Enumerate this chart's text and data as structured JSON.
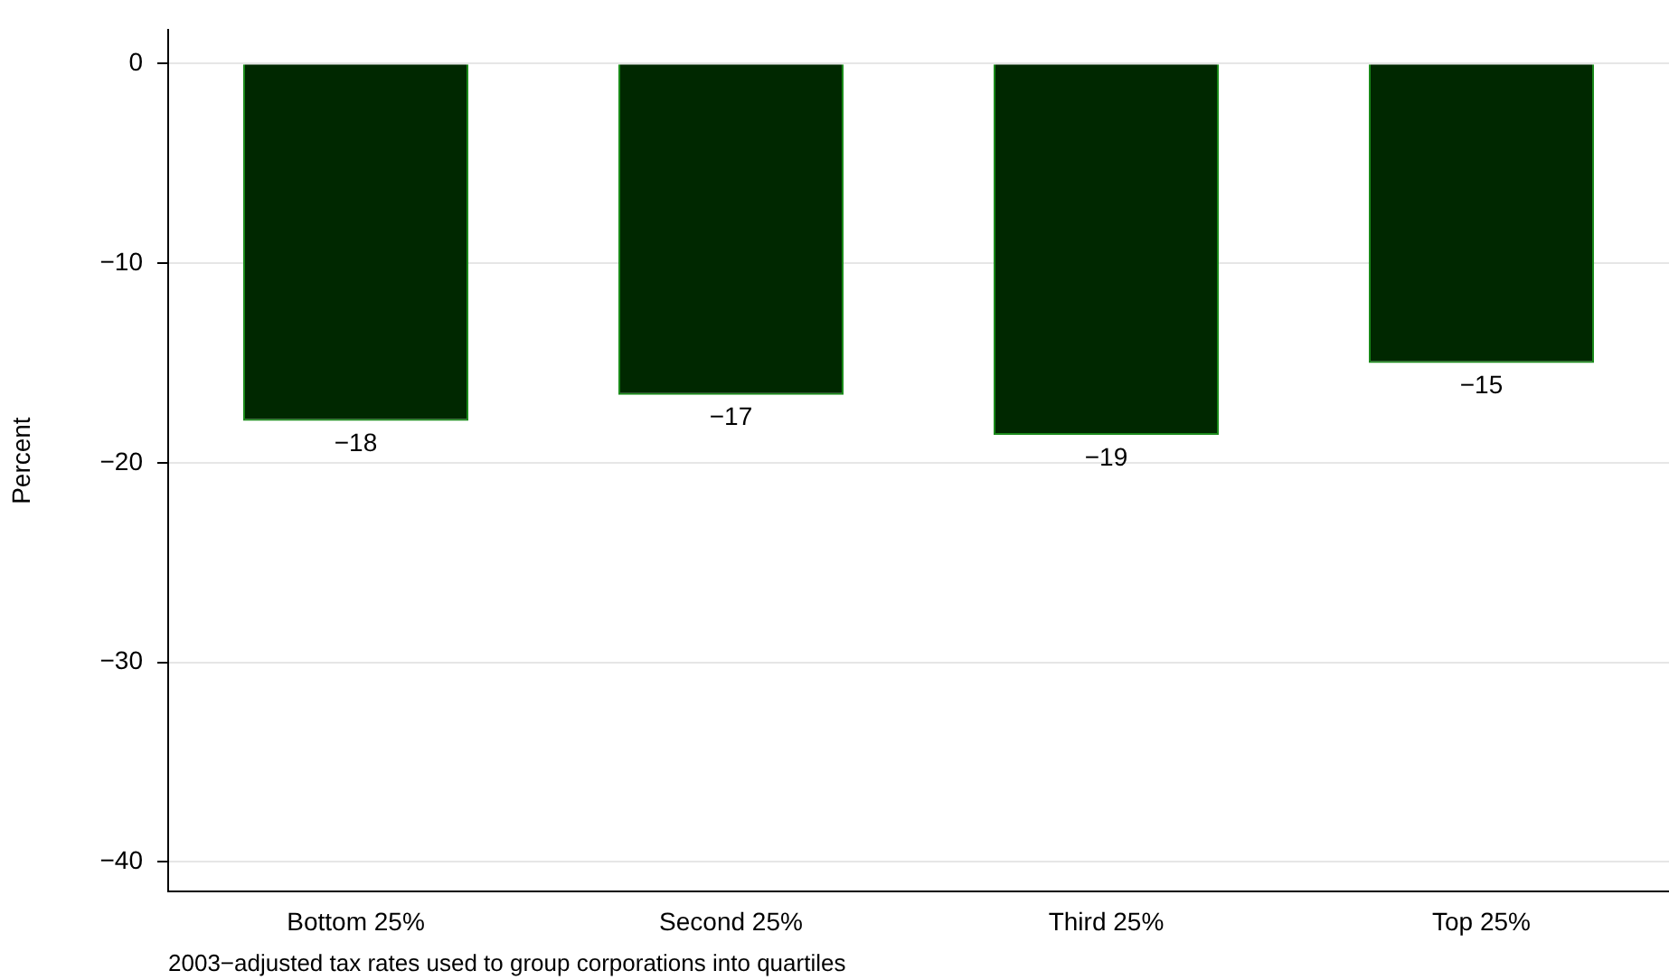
{
  "chart_data": {
    "type": "bar",
    "ylabel": "Percent",
    "categories": [
      "Bottom 25%",
      "Second 25%",
      "Third 25%",
      "Top 25%"
    ],
    "values": [
      -17.9,
      -16.6,
      -18.6,
      -15.0
    ],
    "value_labels": [
      "−18",
      "−17",
      "−19",
      "−15"
    ],
    "color": "#002800",
    "ylim": [
      -41.5,
      1.7
    ],
    "yticks": [
      {
        "value": 0,
        "label": "0"
      },
      {
        "value": -10,
        "label": "−10"
      },
      {
        "value": -20,
        "label": "−20"
      },
      {
        "value": -30,
        "label": "−30"
      },
      {
        "value": -40,
        "label": "−40"
      }
    ],
    "grid": "y",
    "legend": false,
    "annotations": [
      "2003−adjusted tax rates used to group corporations into quartiles"
    ]
  }
}
